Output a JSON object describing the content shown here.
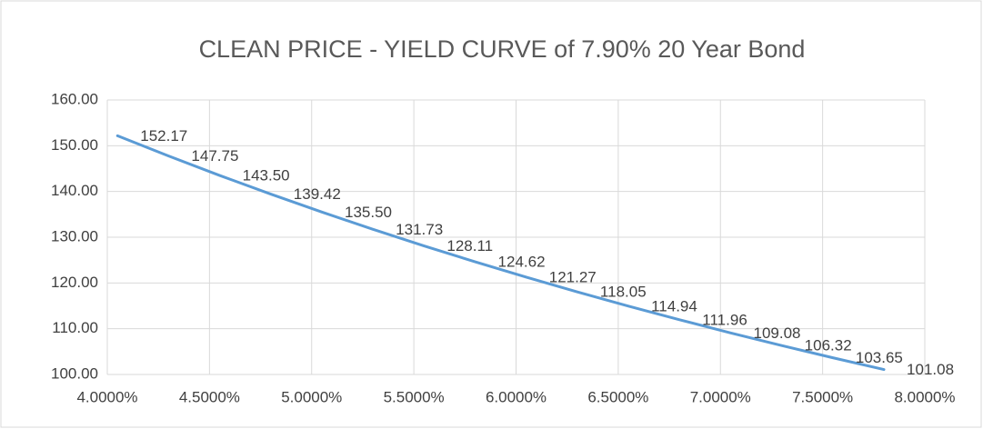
{
  "chart_data": {
    "type": "line",
    "title": "CLEAN PRICE - YIELD CURVE of 7.90% 20 Year Bond",
    "x": [
      4.05,
      4.3,
      4.55,
      4.8,
      5.05,
      5.3,
      5.55,
      5.8,
      6.05,
      6.3,
      6.55,
      6.8,
      7.05,
      7.3,
      7.55,
      7.8
    ],
    "series": [
      {
        "color": "#5b9bd5",
        "values": [
          152.17,
          147.75,
          143.5,
          139.42,
          135.5,
          131.73,
          128.11,
          124.62,
          121.27,
          118.05,
          114.94,
          111.96,
          109.08,
          106.32,
          103.65,
          101.08
        ],
        "value_labels": [
          "152.17",
          "147.75",
          "143.50",
          "139.42",
          "135.50",
          "131.73",
          "128.11",
          "124.62",
          "121.27",
          "118.05",
          "114.94",
          "111.96",
          "109.08",
          "106.32",
          "103.65",
          "101.08"
        ]
      }
    ],
    "xlim": [
      4,
      8
    ],
    "xticks": [
      {
        "value": 4,
        "label": "4.0000%"
      },
      {
        "value": 4.5,
        "label": "4.5000%"
      },
      {
        "value": 5,
        "label": "5.0000%"
      },
      {
        "value": 5.5,
        "label": "5.5000%"
      },
      {
        "value": 6,
        "label": "6.0000%"
      },
      {
        "value": 6.5,
        "label": "6.5000%"
      },
      {
        "value": 7,
        "label": "7.0000%"
      },
      {
        "value": 7.5,
        "label": "7.5000%"
      },
      {
        "value": 8,
        "label": "8.0000%"
      }
    ],
    "ylim": [
      100,
      160
    ],
    "yticks": [
      {
        "value": 100,
        "label": "100.00"
      },
      {
        "value": 110,
        "label": "110.00"
      },
      {
        "value": 120,
        "label": "120.00"
      },
      {
        "value": 130,
        "label": "130.00"
      },
      {
        "value": 140,
        "label": "140.00"
      },
      {
        "value": 150,
        "label": "150.00"
      },
      {
        "value": 160,
        "label": "160.00"
      }
    ],
    "grid": true
  }
}
